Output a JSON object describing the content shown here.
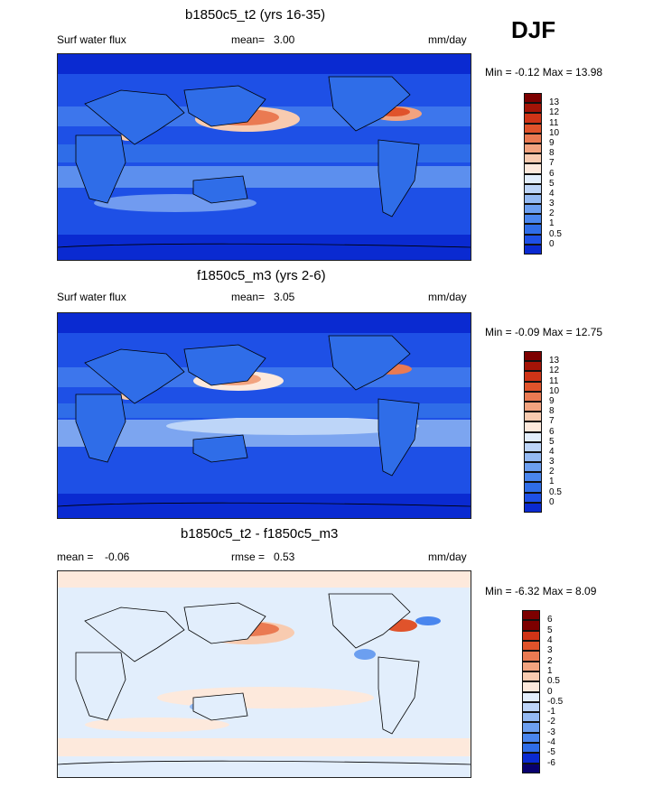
{
  "season": "DJF",
  "colors": {
    "seq": [
      "#08006e",
      "#0a2ad1",
      "#1e50e6",
      "#2f6de8",
      "#4a86ee",
      "#6c9ff0",
      "#94baf3",
      "#bdd5f8",
      "#e2eefc",
      "#fde9dc",
      "#f8cbb0",
      "#f2a37f",
      "#ea7a52",
      "#e0532b",
      "#cf3417",
      "#a41407",
      "#7d0000"
    ],
    "div": [
      "#08006e",
      "#0a2ad1",
      "#2f6de8",
      "#4a86ee",
      "#6c9ff0",
      "#94baf3",
      "#bdd5f8",
      "#e2eefc",
      "#fde9dc",
      "#f8cbb0",
      "#f2a37f",
      "#ea7a52",
      "#e0532b",
      "#cf3417",
      "#7d0000"
    ]
  },
  "chart_data": [
    {
      "type": "heatmap",
      "title": "b1850c5_t2 (yrs 16-35)",
      "left_label": "Surf water flux",
      "mean_label": "mean=",
      "mean": "3.00",
      "units": "mm/day",
      "min_max": "Min =  -0.12 Max =  13.98",
      "min": -0.12,
      "max": 13.98,
      "colorbar_ticks": [
        "13",
        "12",
        "11",
        "10",
        "9",
        "8",
        "7",
        "6",
        "5",
        "4",
        "3",
        "2",
        "1",
        "0.5",
        "0"
      ]
    },
    {
      "type": "heatmap",
      "title": "f1850c5_m3 (yrs 2-6)",
      "left_label": "Surf water flux",
      "mean_label": "mean=",
      "mean": "3.05",
      "units": "mm/day",
      "min_max": "Min =  -0.09 Max =  12.75",
      "min": -0.09,
      "max": 12.75,
      "colorbar_ticks": [
        "13",
        "12",
        "11",
        "10",
        "9",
        "8",
        "7",
        "6",
        "5",
        "4",
        "3",
        "2",
        "1",
        "0.5",
        "0"
      ]
    },
    {
      "type": "heatmap",
      "title": "b1850c5_t2 - f1850c5_m3",
      "mean_label": "mean =",
      "mean": "-0.06",
      "rmse_label": "rmse =",
      "rmse": "0.53",
      "units": "mm/day",
      "min_max": "Min =  -6.32 Max =   8.09",
      "min": -6.32,
      "max": 8.09,
      "colorbar_ticks": [
        "6",
        "5",
        "4",
        "3",
        "2",
        "1",
        "0.5",
        "0",
        "-0.5",
        "-1",
        "-2",
        "-3",
        "-4",
        "-5",
        "-6"
      ]
    }
  ]
}
